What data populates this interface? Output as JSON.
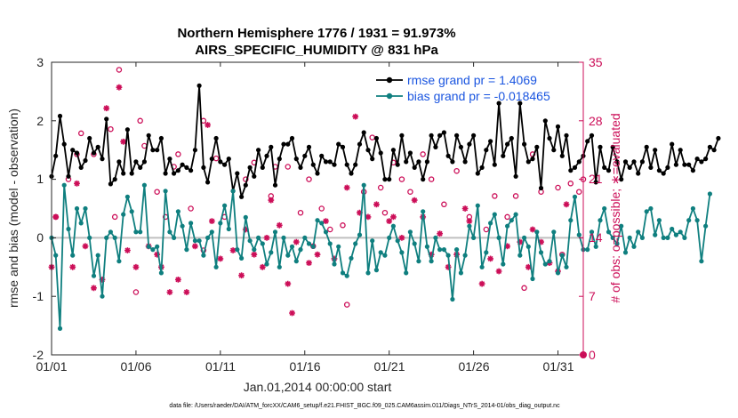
{
  "colors": {
    "rmse": "#000000",
    "bias": "#0f7f7f",
    "obs": "#cc0e58",
    "legend_text": "#1a55e0",
    "zero_line": "#bfbfbf"
  },
  "chart_data": {
    "type": "line",
    "title_line1": "Northern Hemisphere 1776 / 1931 = 91.973%",
    "title_line2": "AIRS_SPECIFIC_HUMIDITY @ 831 hPa",
    "xlabel": "Jan.01,2014 00:00:00 start",
    "ylabel": "rmse and bias (model - observation)",
    "ylabel_right": "# of obs: o=possible; ∗=evaluated",
    "ylim": [
      -2,
      3
    ],
    "ylim_right": [
      0,
      35
    ],
    "xlim": [
      1,
      32.5
    ],
    "yticks": [
      "-2",
      "-1",
      "0",
      "1",
      "2",
      "3"
    ],
    "yticks_right": [
      "0",
      "7",
      "14",
      "21",
      "28",
      "35"
    ],
    "xticks": [
      {
        "pos": 1,
        "label": "01/01"
      },
      {
        "pos": 6,
        "label": "01/06"
      },
      {
        "pos": 11,
        "label": "01/11"
      },
      {
        "pos": 16,
        "label": "01/16"
      },
      {
        "pos": 21,
        "label": "01/21"
      },
      {
        "pos": 26,
        "label": "01/26"
      },
      {
        "pos": 31,
        "label": "01/31"
      }
    ],
    "legend": {
      "rmse": "rmse grand pr = 1.4069",
      "bias": "bias grand pr = -0.018465"
    },
    "footnote": "data file: /Users/raeder/DAI/ATM_forcXX/CAM6_setup/f.e21.FHIST_BGC.f09_025.CAM6assim.011/Diags_NTrS_2014-01/obs_diag_output.nc",
    "x_start": 1,
    "x_step": 0.25,
    "series": [
      {
        "name": "rmse",
        "values": [
          1.05,
          1.4,
          2.08,
          1.6,
          1.05,
          1.5,
          1.45,
          1.2,
          1.32,
          1.7,
          1.45,
          1.55,
          1.35,
          2.03,
          0.92,
          1.0,
          1.3,
          1.1,
          1.85,
          1.1,
          1.3,
          1.2,
          1.3,
          1.75,
          1.5,
          1.5,
          1.7,
          1.1,
          1.35,
          1.1,
          1.15,
          1.25,
          1.2,
          1.15,
          1.5,
          2.6,
          1.2,
          0.95,
          1.35,
          1.7,
          1.3,
          1.25,
          1.35,
          0.8,
          1.1,
          0.7,
          0.9,
          1.2,
          1.05,
          1.5,
          1.2,
          1.4,
          1.55,
          0.9,
          1.35,
          1.6,
          1.6,
          1.7,
          1.35,
          1.2,
          1.4,
          1.55,
          1.25,
          1.1,
          1.4,
          1.3,
          1.3,
          1.25,
          1.6,
          1.55,
          1.25,
          1.1,
          1.25,
          1.6,
          1.8,
          1.5,
          1.35,
          1.7,
          1.45,
          1.0,
          1.0,
          1.5,
          1.25,
          1.75,
          1.3,
          1.45,
          1.2,
          1.3,
          1.0,
          1.3,
          1.75,
          1.55,
          1.75,
          1.8,
          1.4,
          1.3,
          1.75,
          1.55,
          1.3,
          1.6,
          1.75,
          1.1,
          1.2,
          1.5,
          1.65,
          1.25,
          2.3,
          1.4,
          1.6,
          1.7,
          1.05,
          2.3,
          1.6,
          1.3,
          1.35,
          1.55,
          0.85,
          2.0,
          1.7,
          1.5,
          1.9,
          1.4,
          1.75,
          1.15,
          1.2,
          1.3,
          1.4,
          1.65,
          1.75,
          0.95,
          1.55,
          1.2,
          1.15,
          1.55,
          1.3,
          1.0,
          1.3,
          1.2,
          1.3,
          1.1,
          1.3,
          1.55,
          1.2,
          1.5,
          1.15,
          1.1,
          1.2,
          1.6,
          1.25,
          1.5,
          1.25,
          1.25,
          1.15,
          1.35,
          1.3,
          1.35,
          1.55,
          1.5,
          1.7
        ]
      },
      {
        "name": "bias",
        "values": [
          0.0,
          -0.3,
          -1.55,
          0.9,
          0.15,
          -0.3,
          0.5,
          0.25,
          0.5,
          0.0,
          -0.65,
          -0.3,
          -1.0,
          0.0,
          0.1,
          0.0,
          -0.4,
          0.4,
          0.7,
          0.45,
          0.1,
          0.1,
          0.9,
          -0.15,
          -0.2,
          -0.15,
          -0.6,
          0.8,
          0.1,
          0.0,
          0.45,
          0.2,
          -0.2,
          0.25,
          -0.05,
          -0.05,
          -0.3,
          0.0,
          0.1,
          -0.5,
          0.25,
          0.55,
          0.15,
          0.8,
          -0.2,
          -0.35,
          0.35,
          -0.05,
          -0.2,
          0.0,
          -0.1,
          -0.45,
          -0.25,
          0.1,
          -0.5,
          0.0,
          -0.3,
          -0.15,
          -0.4,
          -0.2,
          0.0,
          -0.1,
          -0.15,
          0.3,
          0.25,
          0.1,
          -0.1,
          -0.45,
          -0.15,
          -0.6,
          -0.65,
          -0.35,
          -0.1,
          0.05,
          0.9,
          -0.6,
          -0.05,
          -0.55,
          -0.25,
          -0.3,
          0.0,
          0.2,
          -0.05,
          -0.25,
          -0.6,
          0.1,
          -0.1,
          -0.4,
          0.45,
          -0.15,
          -0.4,
          0.0,
          -0.2,
          -0.2,
          -0.3,
          -1.05,
          -0.2,
          -0.6,
          -0.3,
          0.2,
          0.0,
          0.55,
          -0.5,
          -0.25,
          0.25,
          0.4,
          0.0,
          -0.45,
          0.2,
          0.3,
          0.4,
          -0.3,
          0.0,
          -0.15,
          -0.7,
          0.1,
          -0.25,
          -0.45,
          -0.4,
          0.1,
          -0.6,
          -0.3,
          -0.5,
          0.3,
          0.7,
          0.05,
          -0.2,
          -0.2,
          0.1,
          -0.15,
          0.3,
          0.5,
          0.1,
          0.0,
          -0.1,
          0.2,
          -0.25,
          0.0,
          -0.15,
          0.1,
          0.0,
          0.45,
          0.5,
          0.05,
          0.3,
          0.0,
          0.0,
          0.15,
          0.05,
          0.1,
          0.0,
          0.3,
          0.5,
          0.3,
          -0.4,
          0.2,
          0.75
        ]
      }
    ],
    "obs_possible_points": [
      [
        1.25,
        16.5
      ],
      [
        2.0,
        21
      ],
      [
        2.5,
        24
      ],
      [
        2.75,
        26.5
      ],
      [
        3.5,
        24
      ],
      [
        4.5,
        27
      ],
      [
        4.75,
        16.5
      ],
      [
        5.0,
        34.1
      ],
      [
        6.25,
        28
      ],
      [
        6.5,
        25
      ],
      [
        7.25,
        19.5
      ],
      [
        7.75,
        16.5
      ],
      [
        8.25,
        22.5
      ],
      [
        8.5,
        24
      ],
      [
        9.25,
        17.5
      ],
      [
        10.0,
        28
      ],
      [
        10.75,
        23.5
      ],
      [
        11.25,
        16.5
      ],
      [
        12.5,
        21
      ],
      [
        13.0,
        23
      ],
      [
        14.0,
        19
      ],
      [
        14.25,
        22.5
      ],
      [
        15.0,
        22.5
      ],
      [
        15.75,
        17
      ],
      [
        16.25,
        21
      ],
      [
        16.5,
        13
      ],
      [
        17.0,
        17.5
      ],
      [
        17.5,
        15
      ],
      [
        18.25,
        15.5
      ],
      [
        18.5,
        6
      ],
      [
        19.5,
        19.5
      ],
      [
        20.0,
        26
      ],
      [
        20.5,
        20
      ],
      [
        20.75,
        17
      ],
      [
        21.25,
        23
      ],
      [
        21.75,
        21
      ],
      [
        22.25,
        19.5
      ],
      [
        23.0,
        24
      ],
      [
        23.5,
        21
      ],
      [
        24.25,
        18
      ],
      [
        25.0,
        22
      ],
      [
        25.75,
        16.5
      ],
      [
        26.75,
        15
      ],
      [
        27.25,
        19
      ],
      [
        28.0,
        16.5
      ],
      [
        28.5,
        19
      ],
      [
        29.0,
        8
      ],
      [
        29.5,
        24
      ],
      [
        30.0,
        19.5
      ],
      [
        31.0,
        20
      ],
      [
        31.75,
        20.5
      ],
      [
        32.25,
        19.5
      ],
      [
        32.5,
        21
      ],
      [
        31.25,
        12
      ],
      [
        6.0,
        7.5
      ],
      [
        10.0,
        12.5
      ]
    ],
    "obs_evaluated_points": [
      [
        1.0,
        10.5
      ],
      [
        1.25,
        16.5
      ],
      [
        2.25,
        10.5
      ],
      [
        2.5,
        20.5
      ],
      [
        3.0,
        13
      ],
      [
        3.5,
        8
      ],
      [
        4.0,
        9
      ],
      [
        4.25,
        29.5
      ],
      [
        5.0,
        32
      ],
      [
        5.25,
        25.5
      ],
      [
        5.5,
        12.5
      ],
      [
        6.0,
        10.5
      ],
      [
        6.75,
        13
      ],
      [
        7.25,
        12
      ],
      [
        7.5,
        10.5
      ],
      [
        8.0,
        7.5
      ],
      [
        8.5,
        9
      ],
      [
        9.0,
        7.5
      ],
      [
        9.5,
        13
      ],
      [
        10.25,
        27.5
      ],
      [
        10.5,
        16
      ],
      [
        11.0,
        11.5
      ],
      [
        11.75,
        12.5
      ],
      [
        12.25,
        9.5
      ],
      [
        12.5,
        15
      ],
      [
        13.0,
        12
      ],
      [
        13.5,
        10.5
      ],
      [
        14.0,
        18.5
      ],
      [
        14.5,
        15.5
      ],
      [
        15.0,
        8.5
      ],
      [
        15.25,
        5
      ],
      [
        15.5,
        13.5
      ],
      [
        16.25,
        11
      ],
      [
        16.75,
        12
      ],
      [
        17.25,
        16
      ],
      [
        17.75,
        11.5
      ],
      [
        18.5,
        20
      ],
      [
        19.0,
        28.5
      ],
      [
        19.25,
        17
      ],
      [
        19.75,
        16.5
      ],
      [
        20.25,
        18
      ],
      [
        21.0,
        16
      ],
      [
        21.25,
        16.5
      ],
      [
        21.75,
        14
      ],
      [
        22.5,
        18.5
      ],
      [
        23.0,
        16.5
      ],
      [
        23.5,
        12
      ],
      [
        24.0,
        14.5
      ],
      [
        24.5,
        10.5
      ],
      [
        25.0,
        12
      ],
      [
        25.5,
        17.5
      ],
      [
        25.75,
        16
      ],
      [
        26.5,
        8.5
      ],
      [
        27.0,
        11.5
      ],
      [
        27.5,
        10
      ],
      [
        28.0,
        13
      ],
      [
        28.75,
        13.5
      ],
      [
        29.5,
        15
      ],
      [
        30.0,
        13.5
      ],
      [
        30.5,
        11
      ],
      [
        31.0,
        10
      ],
      [
        31.5,
        18
      ],
      [
        29.25,
        10.5
      ],
      [
        13.75,
        14
      ]
    ]
  }
}
